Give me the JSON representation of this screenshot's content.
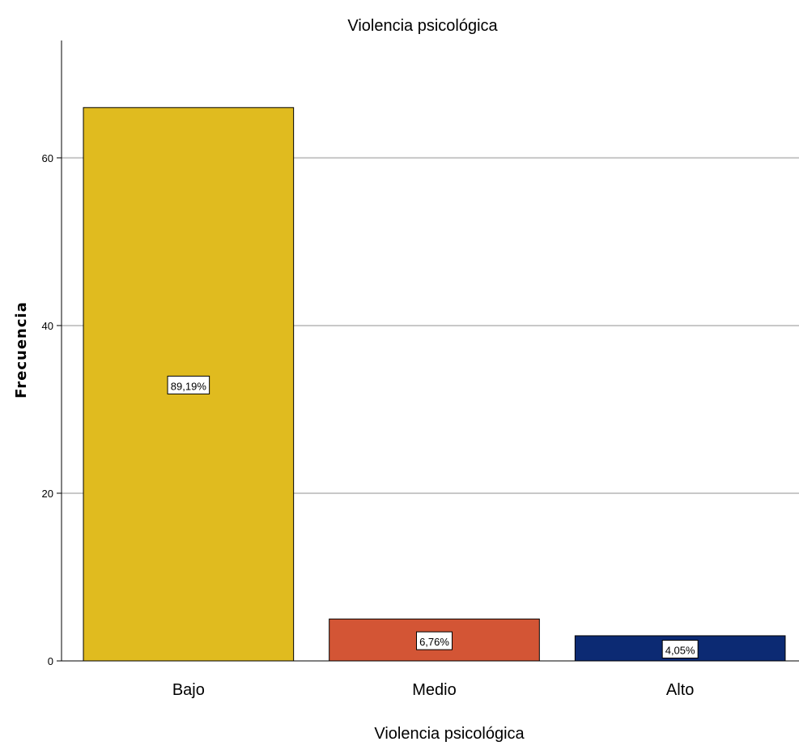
{
  "chart_data": {
    "type": "bar",
    "title": "Violencia psicológica",
    "xlabel": "Violencia psicológica",
    "ylabel": "Frecuencia",
    "categories": [
      "Bajo",
      "Medio",
      "Alto"
    ],
    "values": [
      66,
      5,
      3
    ],
    "data_labels": [
      "89,19%",
      "6,76%",
      "4,05%"
    ],
    "colors": [
      "#e0bb1f",
      "#d35535",
      "#0c2a73"
    ],
    "ylim": [
      0,
      74
    ],
    "yticks": [
      0,
      20,
      40,
      60
    ],
    "grid": true,
    "legend": "none"
  }
}
